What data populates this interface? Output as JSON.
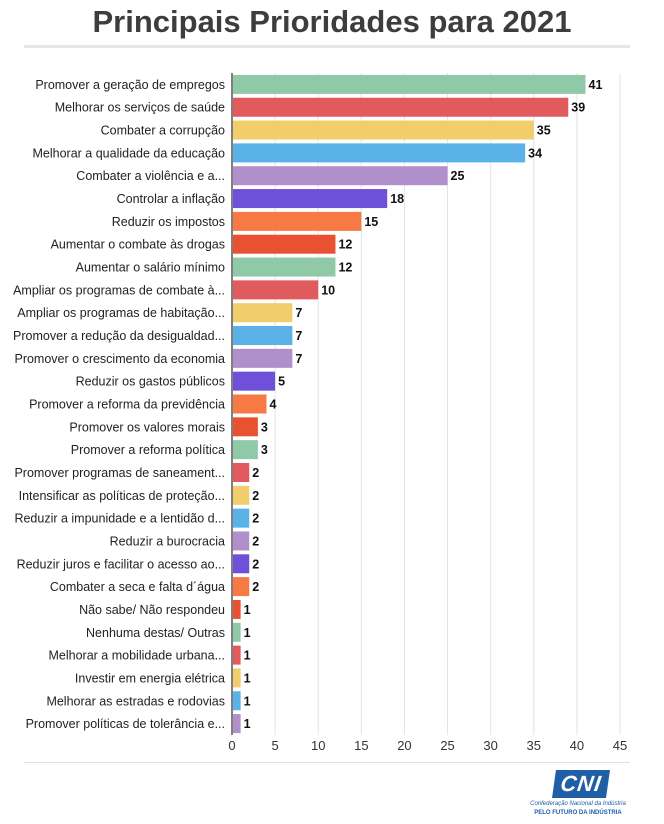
{
  "brand": {
    "logo_text": "CNI",
    "org_name": "Confederação Nacional da Indústria",
    "tagline": "PELO FUTURO DA INDÚSTRIA",
    "color": "#1f5fa6"
  },
  "chart_data": {
    "type": "bar",
    "orientation": "horizontal",
    "title": "Principais Prioridades para 2021",
    "xlabel": "",
    "ylabel": "",
    "xlim": [
      0,
      45
    ],
    "xticks": [
      0,
      5,
      10,
      15,
      20,
      25,
      30,
      35,
      40,
      45
    ],
    "grid": true,
    "legend": "none",
    "categories": [
      "Promover a geração de empregos",
      "Melhorar os serviços de saúde",
      "Combater a corrupção",
      "Melhorar a qualidade da educação",
      "Combater a violência e a...",
      "Controlar a inflação",
      "Reduzir os impostos",
      "Aumentar o combate às drogas",
      "Aumentar o salário mínimo",
      "Ampliar os programas de combate à...",
      "Ampliar os programas de habitação...",
      "Promover a redução da desigualdad...",
      "Promover o crescimento da economia",
      "Reduzir os gastos públicos",
      "Promover a reforma da previdência",
      "Promover os valores morais",
      "Promover a reforma política",
      "Promover programas de saneament...",
      "Intensificar as políticas de proteção...",
      "Reduzir a impunidade e a lentidão d...",
      "Reduzir a burocracia",
      "Reduzir juros e facilitar o acesso ao...",
      "Combater a seca e falta d´água",
      "Não sabe/ Não respondeu",
      "Nenhuma destas/ Outras",
      "Melhorar a mobilidade urbana...",
      "Investir em energia elétrica",
      "Melhorar as estradas e rodovias",
      "Promover políticas de tolerância e..."
    ],
    "values": [
      41,
      39,
      35,
      34,
      25,
      18,
      15,
      12,
      12,
      10,
      7,
      7,
      7,
      5,
      4,
      3,
      3,
      2,
      2,
      2,
      2,
      2,
      2,
      1,
      1,
      1,
      1,
      1,
      1
    ],
    "colors": [
      "#8fc9a7",
      "#e05a5e",
      "#f1cd6c",
      "#5ab2e6",
      "#b08fca",
      "#6f50d8",
      "#f77a44",
      "#e85230"
    ]
  }
}
